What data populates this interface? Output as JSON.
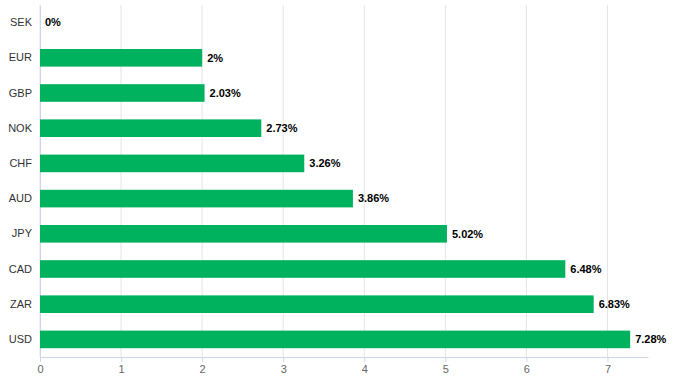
{
  "chart_data": {
    "type": "bar",
    "orientation": "horizontal",
    "categories": [
      "SEK",
      "EUR",
      "GBP",
      "NOK",
      "CHF",
      "AUD",
      "JPY",
      "CAD",
      "ZAR",
      "USD"
    ],
    "values": [
      0,
      2,
      2.03,
      2.73,
      3.26,
      3.86,
      5.02,
      6.48,
      6.83,
      7.28
    ],
    "value_labels": [
      "0%",
      "2%",
      "2.03%",
      "2.73%",
      "3.26%",
      "3.86%",
      "5.02%",
      "6.48%",
      "6.83%",
      "7.28%"
    ],
    "color": "#00b15e",
    "xlim": [
      0,
      7.5
    ],
    "xticks": [
      0,
      1,
      2,
      3,
      4,
      5,
      6,
      7
    ],
    "grid": true,
    "data_labels": true
  }
}
